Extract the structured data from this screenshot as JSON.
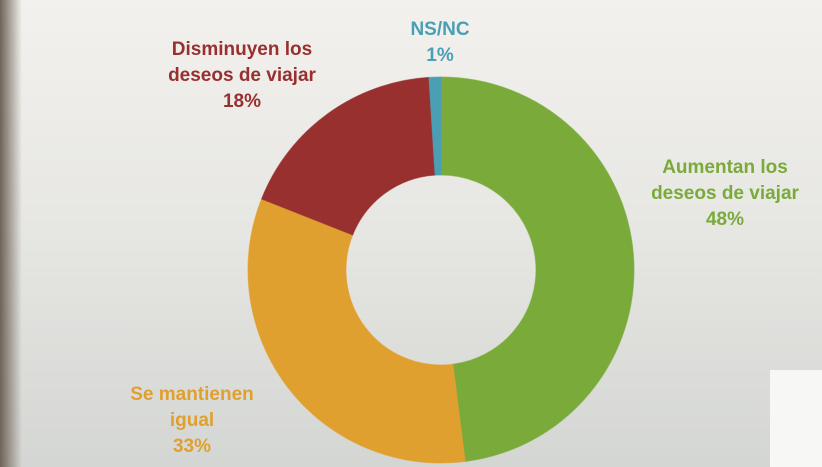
{
  "chart_data": {
    "type": "pie",
    "categories": [
      [
        "Aumentan los",
        "deseos de viajar"
      ],
      [
        "Se mantienen",
        "igual"
      ],
      [
        "Disminuyen los",
        "deseos de viajar"
      ],
      [
        "NS/NC"
      ]
    ],
    "values": [
      48,
      33,
      18,
      1
    ],
    "value_labels": [
      "48%",
      "33%",
      "18%",
      "1%"
    ],
    "colors": [
      "#7aab3a",
      "#e0a030",
      "#98302f",
      "#4a9fb5"
    ]
  }
}
